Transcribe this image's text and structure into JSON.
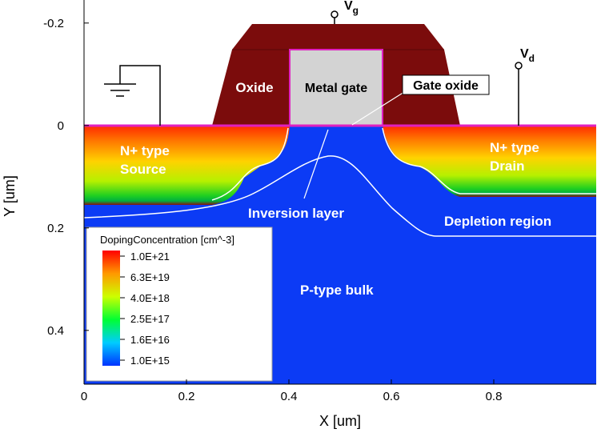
{
  "axes": {
    "x_label": "X [um]",
    "y_label": "Y [um]",
    "xlim": [
      0,
      1
    ],
    "ylim": [
      -0.245,
      0.505
    ],
    "xticks": [
      0,
      0.2,
      0.4,
      0.6,
      0.8
    ],
    "yticks": [
      -0.2,
      0,
      0.2,
      0.4
    ]
  },
  "labels": {
    "oxide": "Oxide",
    "metal_gate": "Metal gate",
    "gate_oxide": "Gate oxide",
    "source": [
      "N+ type",
      "Source"
    ],
    "drain": [
      "N+ type",
      "Drain"
    ],
    "inversion": "Inversion layer",
    "depletion": "Depletion region",
    "bulk": "P-type bulk",
    "vg": {
      "base": "V",
      "sub": "g"
    },
    "vd": {
      "base": "V",
      "sub": "d"
    }
  },
  "legend": {
    "title": "DopingConcentration [cm^-3]",
    "entries": [
      "1.0E+21",
      "6.3E+19",
      "4.0E+18",
      "2.5E+17",
      "1.6E+16",
      "1.0E+15"
    ]
  }
}
